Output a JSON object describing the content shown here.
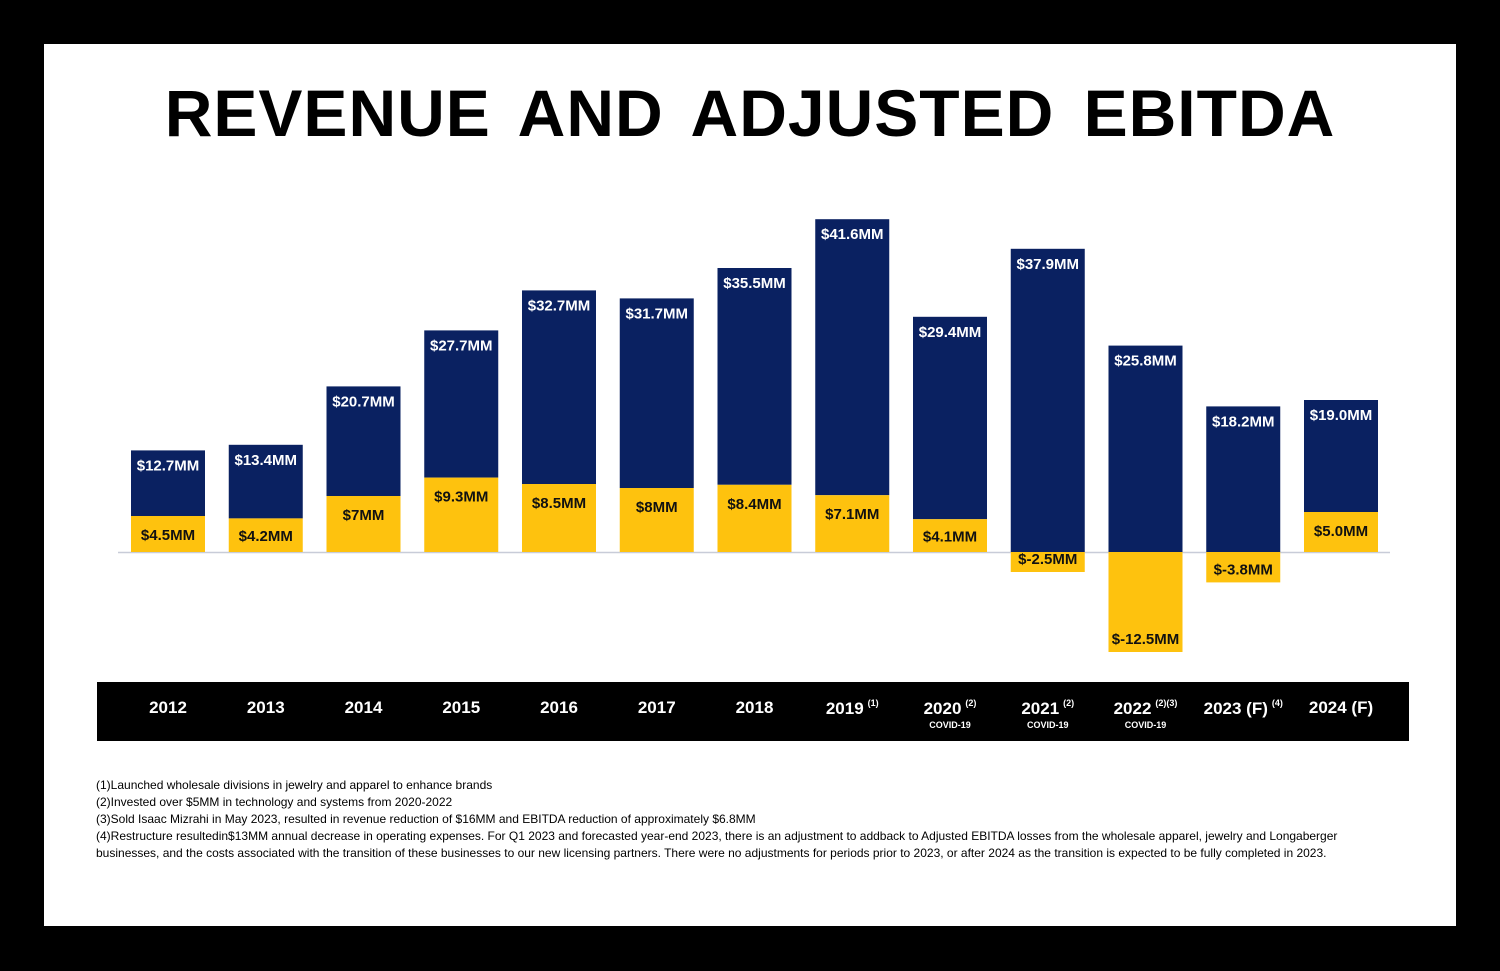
{
  "title": "REVENUE AND ADJUSTED EBITDA",
  "colors": {
    "revenue": "#0a2161",
    "ebitda": "#fec20e",
    "band": "#000000",
    "baseline": "#c8ccd8"
  },
  "chart_data": {
    "type": "bar",
    "title": "REVENUE AND ADJUSTED EBITDA",
    "xlabel": "",
    "ylabel": "",
    "grid": false,
    "legend": "none",
    "categories": [
      "2012",
      "2013",
      "2014",
      "2015",
      "2016",
      "2017",
      "2018",
      "2019",
      "2020",
      "2021",
      "2022",
      "2023 (F)",
      "2024 (F)"
    ],
    "category_superscripts": [
      "",
      "",
      "",
      "",
      "",
      "",
      "",
      "(1)",
      "(2)",
      "(2)",
      "(2)(3)",
      "(4)",
      ""
    ],
    "category_sublabels": [
      "",
      "",
      "",
      "",
      "",
      "",
      "",
      "",
      "COVID-19",
      "COVID-19",
      "COVID-19",
      "",
      ""
    ],
    "series": [
      {
        "name": "Revenue",
        "values": [
          12.7,
          13.4,
          20.7,
          27.7,
          32.7,
          31.7,
          35.5,
          41.6,
          29.4,
          37.9,
          25.8,
          18.2,
          19.0
        ],
        "labels": [
          "$12.7MM",
          "$13.4MM",
          "$20.7MM",
          "$27.7MM",
          "$32.7MM",
          "$31.7MM",
          "$35.5MM",
          "$41.6MM",
          "$29.4MM",
          "$37.9MM",
          "$25.8MM",
          "$18.2MM",
          "$19.0MM"
        ]
      },
      {
        "name": "Adjusted EBITDA",
        "values": [
          4.5,
          4.2,
          7,
          9.3,
          8.5,
          8,
          8.4,
          7.1,
          4.1,
          -2.5,
          -12.5,
          -3.8,
          5.0
        ],
        "labels": [
          "$4.5MM",
          "$4.2MM",
          "$7MM",
          "$9.3MM",
          "$8.5MM",
          "$8MM",
          "$8.4MM",
          "$7.1MM",
          "$4.1MM",
          "$-2.5MM",
          "$-12.5MM",
          "$-3.8MM",
          "$5.0MM"
        ]
      }
    ],
    "units": "$MM",
    "ylim": [
      -14,
      44
    ]
  },
  "notes": [
    "(1)Launched wholesale divisions in jewelry and apparel to enhance brands",
    "(2)Invested over $5MM in technology and systems from 2020-2022",
    "(3)Sold Isaac Mizrahi in May 2023, resulted in revenue reduction of $16MM and EBITDA reduction of approximately $6.8MM",
    "(4)Restructure resultedin$13MM annual decrease in operating expenses. For Q1 2023 and forecasted year-end 2023, there is an adjustment to addback to Adjusted EBITDA losses from the wholesale apparel, jewelry and Longaberger businesses, and the costs associated with the transition of these businesses to our new licensing partners.  There were no adjustments for periods prior to 2023, or after 2024 as the transition is expected to be fully completed in 2023."
  ]
}
